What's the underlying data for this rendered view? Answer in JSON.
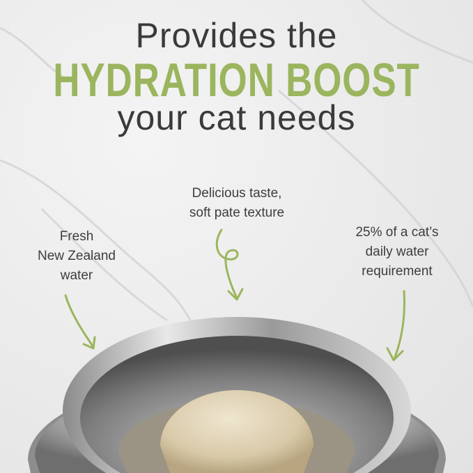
{
  "headline": {
    "line1": "Provides the",
    "line2": "HYDRATION BOOST",
    "line3": "your cat needs"
  },
  "callouts": [
    {
      "lines": [
        "Fresh",
        "New Zealand",
        "water"
      ]
    },
    {
      "lines": [
        "Delicious taste,",
        "soft pate texture"
      ]
    },
    {
      "lines": [
        "25% of a cat’s",
        "daily water",
        "requirement"
      ]
    }
  ],
  "colors": {
    "accent": "#9bb55e",
    "text": "#3a3a3a"
  }
}
